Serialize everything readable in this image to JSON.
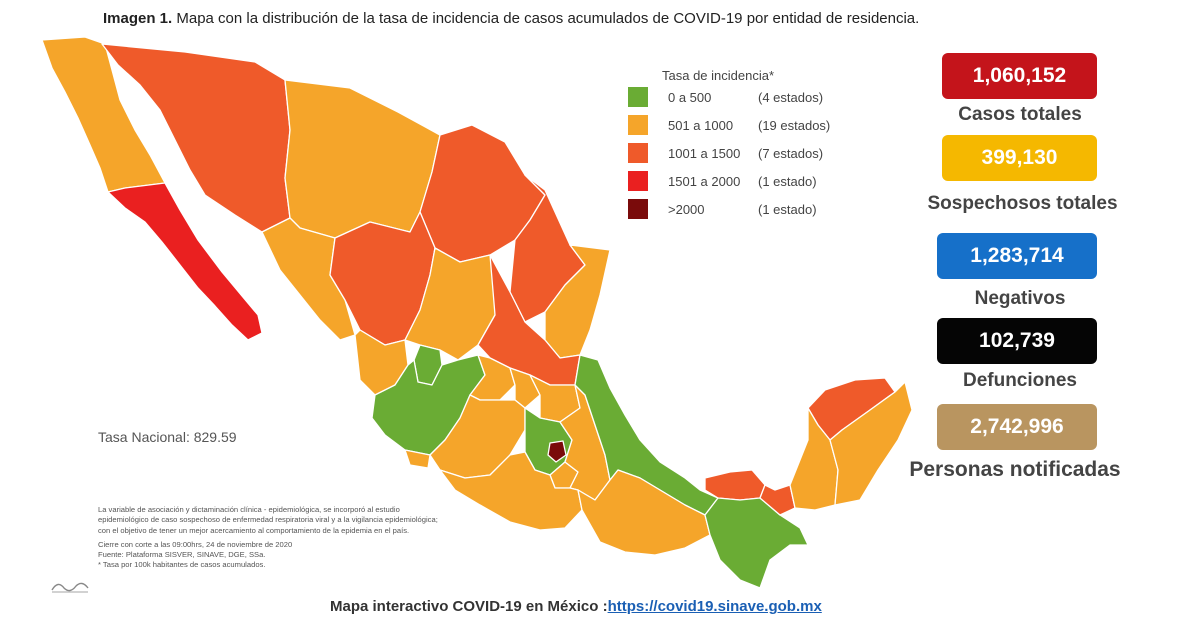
{
  "title": {
    "prefix": "Imagen 1.",
    "text": " Mapa con la distribución de la tasa de incidencia de casos acumulados de COVID-19 por entidad de residencia."
  },
  "legend": {
    "title": "Tasa de incidencia*",
    "items": [
      {
        "range": "0 a   500",
        "count": "(4 estados)",
        "color": "#6aac34"
      },
      {
        "range": "501 a  1000",
        "count": "(19 estados)",
        "color": "#f5a52a"
      },
      {
        "range": "1001 a  1500",
        "count": "(7 estados)",
        "color": "#ef5a2a"
      },
      {
        "range": "1501 a  2000",
        "count": "(1 estado)",
        "color": "#ea2020"
      },
      {
        "range": ">2000",
        "count": "(1 estado)",
        "color": "#7a0b0b"
      }
    ]
  },
  "stats": [
    {
      "value": "1,060,152",
      "label": "Casos totales",
      "color": "#c4141b"
    },
    {
      "value": "399,130",
      "label": "Sospechosos totales",
      "color": "#f5b800"
    },
    {
      "value": "1,283,714",
      "label": "Negativos",
      "color": "#1670c9"
    },
    {
      "value": "102,739",
      "label": "Defunciones",
      "color": "#050505"
    },
    {
      "value": "2,742,996",
      "label": "Personas notificadas",
      "color": "#b99560"
    }
  ],
  "tasa_nacional": "Tasa Nacional: 829.59",
  "notes": [
    "La variable de asociación y dictaminación clínica - epidemiológica, se incorporó al estudio",
    "epidemiológico de caso sospechoso de enfermedad respiratoria viral y a la vigilancia epidemiológica;",
    "con el objetivo de tener un mejor acercamiento al comportamiento de la epidemia en el país.",
    "",
    "Cierre con corte a las 09:00hrs, 24 de noviembre de 2020",
    "Fuente: Plataforma SISVER, SINAVE, DGE, SSa.",
    "* Tasa por 100k habitantes de casos acumulados."
  ],
  "footer": {
    "text": "Mapa interactivo COVID-19 en México :",
    "link": "https://covid19.sinave.gob.mx"
  },
  "colors": {
    "green": "#6aac34",
    "orange": "#f5a52a",
    "red_orange": "#ef5a2a",
    "red": "#ea2020",
    "dark_red": "#7a0b0b"
  }
}
